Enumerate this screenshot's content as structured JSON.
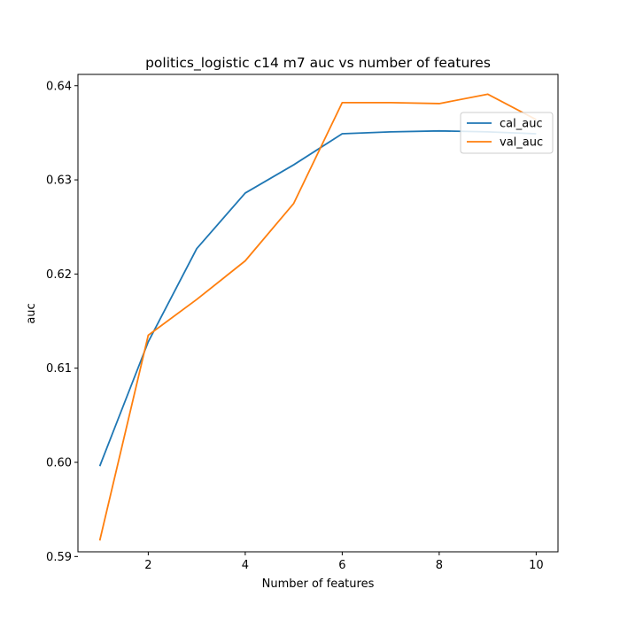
{
  "chart_data": {
    "type": "line",
    "title": "politics_logistic c14 m7 auc vs number of features",
    "xlabel": "Number of features",
    "ylabel": "auc",
    "xlim": [
      0.55,
      10.45
    ],
    "ylim": [
      0.5905,
      0.6412
    ],
    "xticks": [
      2,
      4,
      6,
      8,
      10
    ],
    "xtick_labels": [
      "2",
      "4",
      "6",
      "8",
      "10"
    ],
    "yticks": [
      0.59,
      0.6,
      0.61,
      0.62,
      0.63,
      0.64
    ],
    "ytick_labels": [
      "0.59",
      "0.60",
      "0.61",
      "0.62",
      "0.63",
      "0.64"
    ],
    "grid": false,
    "legend_position": "upper-right",
    "x": [
      1,
      2,
      3,
      4,
      5,
      6,
      7,
      8,
      9,
      10
    ],
    "series": [
      {
        "name": "cal_auc",
        "color": "#1f77b4",
        "values": [
          0.5996,
          0.6128,
          0.6227,
          0.6286,
          0.6316,
          0.6349,
          0.6351,
          0.6352,
          0.6351,
          0.6349
        ]
      },
      {
        "name": "val_auc",
        "color": "#ff7f0e",
        "values": [
          0.5917,
          0.6135,
          0.6173,
          0.6214,
          0.6275,
          0.6382,
          0.6382,
          0.6381,
          0.6391,
          0.6364
        ]
      }
    ]
  }
}
